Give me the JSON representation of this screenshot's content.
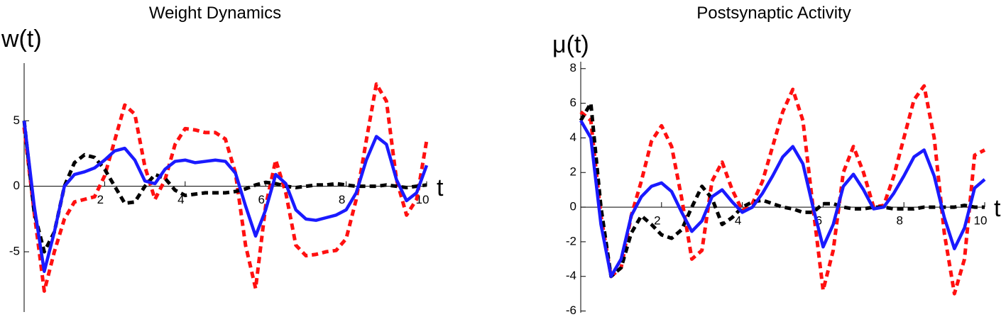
{
  "chart_data": [
    {
      "type": "line",
      "title": "Weight Dynamics",
      "y_label": "w(t)",
      "x_label": "t",
      "x": [
        0,
        0.25,
        0.5,
        0.75,
        1,
        1.25,
        1.5,
        1.75,
        2,
        2.25,
        2.5,
        2.75,
        3,
        3.25,
        3.5,
        3.75,
        4,
        4.25,
        4.5,
        4.75,
        5,
        5.25,
        5.5,
        5.75,
        6,
        6.25,
        6.5,
        6.75,
        7,
        7.25,
        7.5,
        7.75,
        8,
        8.25,
        8.5,
        8.75,
        9,
        9.25,
        9.5,
        9.75,
        10
      ],
      "xlim": [
        0,
        10
      ],
      "ylim": [
        -9.6,
        9.4
      ],
      "xticks": [
        2,
        4,
        6,
        8,
        10
      ],
      "yticks": [
        -5,
        0,
        5
      ],
      "series": [
        {
          "color": "#ff1010",
          "dashed": true,
          "values": [
            4.5,
            -2,
            -8,
            -5,
            -2.5,
            -1.2,
            -1,
            -0.8,
            0.8,
            3.5,
            6.2,
            5.5,
            1.5,
            -1,
            0.5,
            3.2,
            4.4,
            4.3,
            4.1,
            4.1,
            3.6,
            1.0,
            -4.5,
            -7.8,
            -1.5,
            2.0,
            -0.5,
            -4.5,
            -5.3,
            -5.2,
            -5.0,
            -4.9,
            -4,
            -1,
            3.5,
            7.8,
            6.5,
            0.5,
            -2.2,
            -1.0,
            3.5
          ]
        },
        {
          "color": "#000000",
          "dashed": true,
          "values": [
            5,
            -2,
            -5,
            -3.5,
            0,
            1.8,
            2.4,
            2.2,
            1.3,
            0,
            -1.3,
            -1.2,
            0,
            0.9,
            0.6,
            -0.3,
            -0.7,
            -0.6,
            -0.5,
            -0.5,
            -0.5,
            -0.4,
            -0.2,
            0.1,
            0.3,
            0.2,
            0,
            -0.1,
            0,
            0.1,
            0.1,
            0.2,
            0.1,
            0,
            0,
            0,
            0.1,
            0,
            -0.1,
            0,
            0.1
          ]
        },
        {
          "color": "#1a1aff",
          "dashed": false,
          "values": [
            5,
            -1.5,
            -6.5,
            -3.5,
            0,
            0.9,
            1.1,
            1.4,
            2.0,
            2.7,
            2.9,
            2.0,
            0.4,
            0.2,
            1.3,
            1.9,
            2.0,
            1.8,
            1.9,
            2.0,
            1.9,
            1.0,
            -1.5,
            -3.8,
            -1.8,
            0.9,
            0.2,
            -1.8,
            -2.5,
            -2.6,
            -2.4,
            -2.2,
            -1.8,
            -0.5,
            2.0,
            3.8,
            3.2,
            0.5,
            -1.1,
            -0.5,
            1.6
          ]
        }
      ]
    },
    {
      "type": "line",
      "title": "Postsynaptic Activity",
      "y_label": "μ(t)",
      "x_label": "t",
      "x": [
        0,
        0.25,
        0.5,
        0.75,
        1,
        1.25,
        1.5,
        1.75,
        2,
        2.25,
        2.5,
        2.75,
        3,
        3.25,
        3.5,
        3.75,
        4,
        4.25,
        4.5,
        4.75,
        5,
        5.25,
        5.5,
        5.75,
        6,
        6.25,
        6.5,
        6.75,
        7,
        7.25,
        7.5,
        7.75,
        8,
        8.25,
        8.5,
        8.75,
        9,
        9.25,
        9.5,
        9.75,
        10
      ],
      "xlim": [
        0,
        10
      ],
      "ylim": [
        -6.1,
        8.4
      ],
      "xticks": [
        2,
        4,
        6,
        8,
        10
      ],
      "yticks": [
        -6,
        -4,
        -2,
        0,
        2,
        4,
        6,
        8
      ],
      "series": [
        {
          "color": "#ff1010",
          "dashed": true,
          "values": [
            5.5,
            5,
            -0.5,
            -4,
            -3.5,
            -0.5,
            1.5,
            3.8,
            4.7,
            3.5,
            0.5,
            -3,
            -2.5,
            1.5,
            2.6,
            1,
            -0.2,
            0.2,
            1.5,
            3.5,
            5.5,
            6.8,
            5,
            0,
            -4.8,
            -2.5,
            2,
            3.5,
            2,
            0,
            0.1,
            1.8,
            4,
            6.2,
            7,
            4,
            -1.5,
            -5,
            -3,
            3,
            3.3
          ]
        },
        {
          "color": "#000000",
          "dashed": true,
          "values": [
            5,
            6,
            0,
            -4,
            -3.5,
            -1.5,
            -0.5,
            -1,
            -1.6,
            -1.8,
            -1.3,
            0,
            1.2,
            0.5,
            -1,
            -0.6,
            0,
            0.3,
            0.4,
            0.2,
            0,
            -0.1,
            -0.3,
            -0.3,
            0.2,
            0.2,
            0,
            -0.1,
            -0.1,
            0,
            0,
            -0.1,
            -0.1,
            -0.1,
            0,
            0,
            0,
            0,
            0.1,
            0,
            0
          ]
        },
        {
          "color": "#1a1aff",
          "dashed": false,
          "values": [
            5,
            4,
            -1,
            -4,
            -3,
            -0.5,
            0.6,
            1.2,
            1.4,
            0.9,
            -0.3,
            -1.4,
            -0.8,
            0.6,
            1.0,
            0.3,
            -0.3,
            0,
            0.8,
            1.8,
            2.9,
            3.5,
            2.5,
            0,
            -2.3,
            -1,
            1.2,
            1.9,
            1.0,
            -0.1,
            0,
            0.8,
            1.8,
            2.9,
            3.3,
            1.8,
            -0.6,
            -2.4,
            -1.2,
            1.1,
            1.6
          ]
        }
      ]
    }
  ]
}
